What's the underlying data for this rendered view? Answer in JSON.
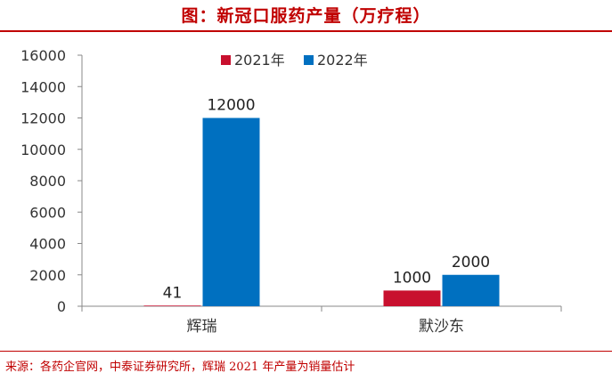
{
  "figure": {
    "title": "图：新冠口服药产量（万疗程）",
    "source": "来源：各药企官网，中泰证券研究所，辉瑞 2021 年产量为销量估计"
  },
  "chart_data": {
    "type": "bar",
    "categories": [
      "辉瑞",
      "默沙东"
    ],
    "series": [
      {
        "name": "2021年",
        "values": [
          41,
          1000
        ],
        "color": "#c8102e"
      },
      {
        "name": "2022年",
        "values": [
          12000,
          2000
        ],
        "color": "#0070c0"
      }
    ],
    "ylim": [
      0,
      16000
    ],
    "yticks": [
      0,
      2000,
      4000,
      6000,
      8000,
      10000,
      12000,
      14000,
      16000
    ],
    "legend": "top-right",
    "grid": false,
    "data_labels": true,
    "xlabel": "",
    "ylabel": ""
  }
}
